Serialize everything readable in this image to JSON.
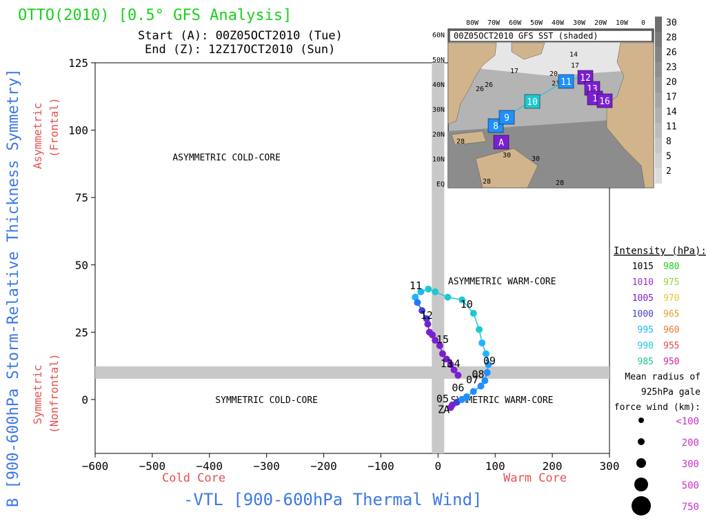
{
  "header": {
    "title": "OTTO(2010) [0.5° GFS Analysis]",
    "start_line": "Start (A): 00Z05OCT2010 (Tue)",
    "end_line": "End (Z): 12Z17OCT2010 (Sun)"
  },
  "colors": {
    "title_green": "#19d119",
    "axis_blue": "#3c78e6",
    "label_red": "#e65050",
    "gray_band": "#c8c8c8",
    "land": "#d2b48c",
    "ocean_dark": "#8c8c8c"
  },
  "chart_data": {
    "type": "scatter",
    "title": "OTTO(2010) [0.5° GFS Analysis]",
    "xlabel": "-VTL [900-600hPa Thermal Wind]",
    "ylabel": "B [900-600hPa Storm-Relative Thickness Symmetry]",
    "xlim": [
      -600,
      300
    ],
    "ylim": [
      -20,
      125
    ],
    "xticks": [
      -600,
      -500,
      -400,
      -300,
      -200,
      -100,
      0,
      100,
      200,
      300
    ],
    "xtick_labels": [
      "−600",
      "−500",
      "−400",
      "−300",
      "−200",
      "−100",
      "0",
      "100",
      "200",
      "300"
    ],
    "yticks": [
      0,
      25,
      50,
      75,
      100,
      125
    ],
    "ytick_labels": [
      "0",
      "25",
      "50",
      "75",
      "100",
      "125"
    ],
    "x_sub_left": "Cold Core",
    "x_sub_right": "Warm Core",
    "y_sub_top": [
      "Asymmetric",
      "(Frontal)"
    ],
    "y_sub_bottom": [
      "Symmetric",
      "(Nonfrontal)"
    ],
    "reference_lines": {
      "x": 0,
      "y": 10
    },
    "quadrant_labels": [
      {
        "text": "ASYMMETRIC COLD-CORE",
        "x": -370,
        "y": 90
      },
      {
        "text": "ASYMMETRIC WARM-CORE",
        "x": 112,
        "y": 44
      },
      {
        "text": "SYMMETRIC COLD-CORE",
        "x": -300,
        "y": 0
      },
      {
        "text": "SYMMETRIC WARM-CORE",
        "x": 112,
        "y": 0
      }
    ],
    "track": [
      {
        "x": 22,
        "y": -3,
        "c": "#7b1fd1"
      },
      {
        "x": 25,
        "y": -2,
        "c": "#7b1fd1"
      },
      {
        "x": 33,
        "y": -1,
        "c": "#3f3fd1"
      },
      {
        "x": 42,
        "y": 0,
        "c": "#1e90ff"
      },
      {
        "x": 50,
        "y": 1,
        "c": "#1e90ff"
      },
      {
        "x": 62,
        "y": 3,
        "c": "#1e90ff"
      },
      {
        "x": 75,
        "y": 5,
        "c": "#1e90ff"
      },
      {
        "x": 82,
        "y": 7,
        "c": "#1e90ff"
      },
      {
        "x": 86,
        "y": 10,
        "c": "#1e90ff"
      },
      {
        "x": 88,
        "y": 13,
        "c": "#1ea0ff"
      },
      {
        "x": 84,
        "y": 17,
        "c": "#1eb4ff"
      },
      {
        "x": 77,
        "y": 21,
        "c": "#1eb4ff"
      },
      {
        "x": 72,
        "y": 26,
        "c": "#1ec8d2"
      },
      {
        "x": 62,
        "y": 32,
        "c": "#1ec8d2"
      },
      {
        "x": 42,
        "y": 37,
        "c": "#1ec8d2"
      },
      {
        "x": 17,
        "y": 38,
        "c": "#1ec8d2"
      },
      {
        "x": -5,
        "y": 40,
        "c": "#1ec8d2"
      },
      {
        "x": -17,
        "y": 41,
        "c": "#1ec8d2"
      },
      {
        "x": -30,
        "y": 40,
        "c": "#1eb4ff"
      },
      {
        "x": -40,
        "y": 38,
        "c": "#1eb4ff"
      },
      {
        "x": -36,
        "y": 36,
        "c": "#1e78ff"
      },
      {
        "x": -28,
        "y": 33,
        "c": "#3f3fd1"
      },
      {
        "x": -20,
        "y": 30,
        "c": "#3f3fd1"
      },
      {
        "x": -18,
        "y": 28,
        "c": "#7b1fd1"
      },
      {
        "x": -15,
        "y": 25,
        "c": "#7b1fd1"
      },
      {
        "x": -10,
        "y": 24,
        "c": "#7b1fd1"
      },
      {
        "x": -5,
        "y": 22,
        "c": "#7b1fd1"
      },
      {
        "x": 3,
        "y": 20,
        "c": "#7b1fd1"
      },
      {
        "x": 8,
        "y": 17,
        "c": "#7b1fd1"
      },
      {
        "x": 15,
        "y": 15,
        "c": "#7b1fd1"
      },
      {
        "x": 22,
        "y": 13,
        "c": "#7b1fd1"
      },
      {
        "x": 28,
        "y": 11,
        "c": "#7b1fd1"
      },
      {
        "x": 35,
        "y": 9,
        "c": "#7b1fd1"
      }
    ],
    "day_labels": [
      {
        "t": "05",
        "x": 8,
        "y": -1
      },
      {
        "t": "06",
        "x": 35,
        "y": 3
      },
      {
        "t": "07",
        "x": 60,
        "y": 6
      },
      {
        "t": "08",
        "x": 70,
        "y": 8
      },
      {
        "t": "09",
        "x": 90,
        "y": 13
      },
      {
        "t": "10",
        "x": 50,
        "y": 34
      },
      {
        "t": "11",
        "x": -39,
        "y": 41
      },
      {
        "t": "12",
        "x": -20,
        "y": 30
      },
      {
        "t": "13",
        "x": 15,
        "y": 12
      },
      {
        "t": "14",
        "x": 28,
        "y": 12
      },
      {
        "t": "15",
        "x": 8,
        "y": 21
      },
      {
        "t": "A",
        "x": 15,
        "y": -5
      },
      {
        "t": "Z",
        "x": 5,
        "y": -5
      }
    ]
  },
  "inset": {
    "title": "00Z05OCT2010 GFS SST (shaded)",
    "lon_labels": [
      "80W",
      "70W",
      "60W",
      "50W",
      "40W",
      "30W",
      "20W",
      "10W",
      "0"
    ],
    "lat_labels": [
      "60N",
      "50N",
      "40N",
      "30N",
      "20N",
      "10N",
      "EQ"
    ],
    "contour_labels": [
      "14",
      "17",
      "20",
      "23",
      "26",
      "17",
      "26",
      "28",
      "28",
      "30",
      "28",
      "30"
    ],
    "track_boxes": [
      {
        "t": "A",
        "c": "#7b1fd1"
      },
      {
        "t": "8",
        "c": "#1e90ff"
      },
      {
        "t": "9",
        "c": "#1e90ff"
      },
      {
        "t": "10",
        "c": "#1ec8d2"
      },
      {
        "t": "11",
        "c": "#1e90ff"
      },
      {
        "t": "12",
        "c": "#7b1fd1"
      },
      {
        "t": "13",
        "c": "#7b1fd1"
      },
      {
        "t": "1",
        "c": "#7b1fd1"
      },
      {
        "t": "16",
        "c": "#7b1fd1"
      }
    ],
    "colorbar": [
      "30",
      "28",
      "26",
      "23",
      "20",
      "17",
      "14",
      "11",
      "8",
      "5",
      "2"
    ]
  },
  "legend": {
    "title": "Intensity (hPa):",
    "rows": [
      {
        "left": "1015",
        "left_c": "#000000",
        "right": "980",
        "right_c": "#19d119"
      },
      {
        "left": "1010",
        "left_c": "#9b30d0",
        "right": "975",
        "right_c": "#9acd32"
      },
      {
        "left": "1005",
        "left_c": "#7b1fd1",
        "right": "970",
        "right_c": "#e6c828"
      },
      {
        "left": "1000",
        "left_c": "#3f3fd1",
        "right": "965",
        "right_c": "#e6a028"
      },
      {
        "left": "995",
        "left_c": "#1eb4ff",
        "right": "960",
        "right_c": "#e67828"
      },
      {
        "left": "990",
        "left_c": "#1ec8d2",
        "right": "955",
        "right_c": "#e64646"
      },
      {
        "left": "985",
        "left_c": "#1ec896",
        "right": "950",
        "right_c": "#d21ea0"
      }
    ],
    "radius_title": [
      "Mean radius of",
      "925hPa gale",
      "force wind (km):"
    ],
    "radius_items": [
      {
        "label": "<100",
        "r": 4
      },
      {
        "label": "200",
        "r": 5
      },
      {
        "label": "300",
        "r": 7
      },
      {
        "label": "500",
        "r": 10
      },
      {
        "label": "750",
        "r": 14
      }
    ],
    "radius_color": "#c832c8"
  }
}
